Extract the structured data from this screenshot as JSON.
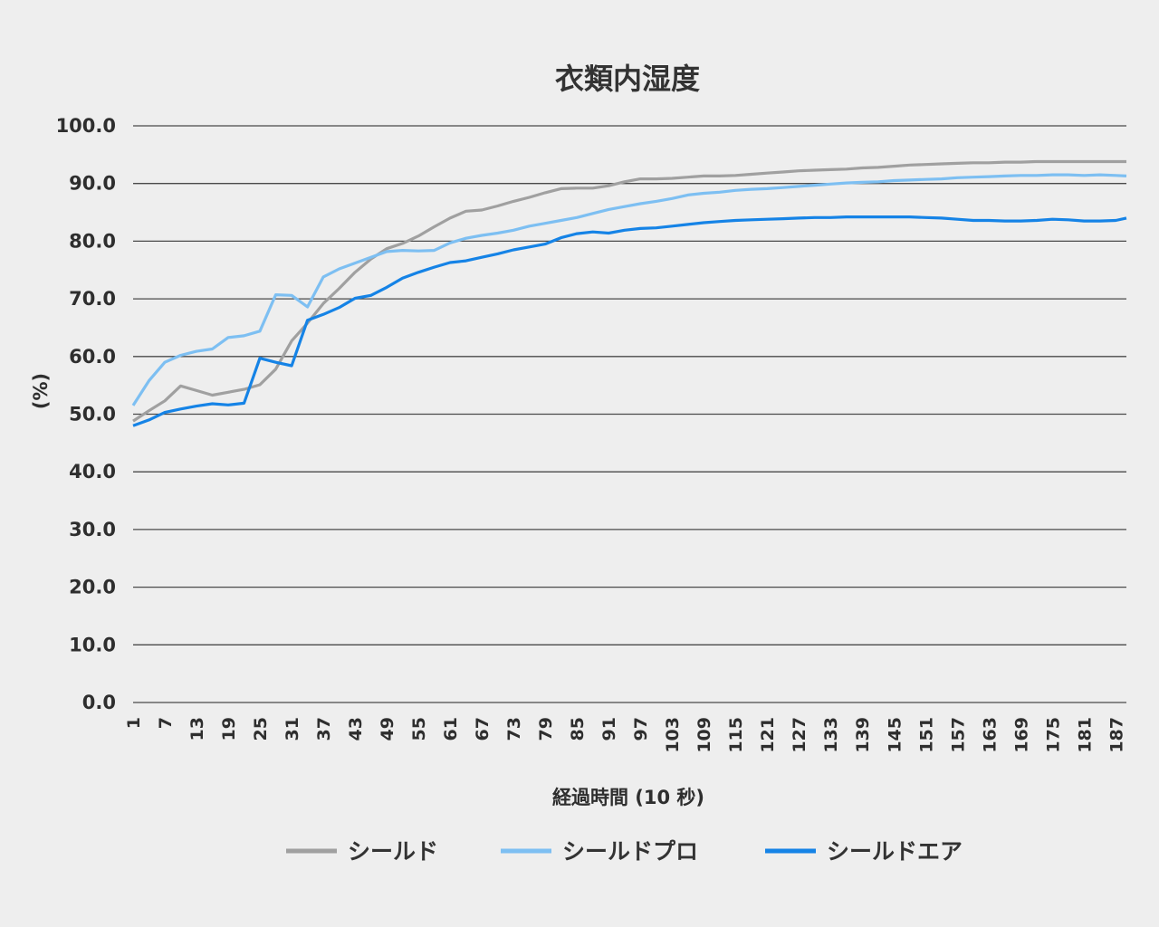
{
  "chart_data": {
    "type": "line",
    "title": "衣類内湿度",
    "xlabel": "経過時間 (10 秒)",
    "ylabel": "(%)",
    "ylim": [
      0,
      100
    ],
    "yticks": [
      "0.0",
      "10.0",
      "20.0",
      "30.0",
      "40.0",
      "50.0",
      "60.0",
      "70.0",
      "80.0",
      "90.0",
      "100.0"
    ],
    "x": [
      1,
      4,
      7,
      10,
      13,
      16,
      19,
      22,
      25,
      28,
      31,
      34,
      37,
      40,
      43,
      46,
      49,
      52,
      55,
      58,
      61,
      64,
      67,
      70,
      73,
      76,
      79,
      82,
      85,
      88,
      91,
      94,
      97,
      100,
      103,
      106,
      109,
      112,
      115,
      118,
      121,
      124,
      127,
      130,
      133,
      136,
      139,
      142,
      145,
      148,
      151,
      154,
      157,
      160,
      163,
      166,
      169,
      172,
      175,
      178,
      181,
      184,
      187,
      189
    ],
    "xticks": [
      1,
      7,
      13,
      19,
      25,
      31,
      37,
      43,
      49,
      55,
      61,
      67,
      73,
      79,
      85,
      91,
      97,
      103,
      109,
      115,
      121,
      127,
      133,
      139,
      145,
      151,
      157,
      163,
      169,
      175,
      181,
      187
    ],
    "grid": true,
    "legend_position": "bottom",
    "series": [
      {
        "name": "シールド",
        "color": "#a0a0a0",
        "values": [
          48.8,
          50.6,
          52.3,
          54.9,
          54.1,
          53.3,
          53.8,
          54.3,
          55.1,
          57.8,
          62.7,
          65.8,
          69.2,
          71.8,
          74.6,
          76.9,
          78.7,
          79.6,
          80.9,
          82.5,
          84,
          85.2,
          85.4,
          86.1,
          86.9,
          87.6,
          88.4,
          89.1,
          89.2,
          89.2,
          89.6,
          90.3,
          90.8,
          90.8,
          90.9,
          91.1,
          91.3,
          91.3,
          91.4,
          91.6,
          91.8,
          92,
          92.2,
          92.3,
          92.4,
          92.5,
          92.7,
          92.8,
          93,
          93.2,
          93.3,
          93.4,
          93.5,
          93.6,
          93.6,
          93.7,
          93.7,
          93.8,
          93.8,
          93.8,
          93.8,
          93.8,
          93.8,
          93.8
        ]
      },
      {
        "name": "シールドプロ",
        "color": "#7dbff2",
        "values": [
          51.5,
          55.8,
          59,
          60.2,
          60.9,
          61.3,
          63.3,
          63.6,
          64.4,
          70.7,
          70.6,
          68.6,
          73.8,
          75.2,
          76.2,
          77.2,
          78.2,
          78.4,
          78.3,
          78.4,
          79.7,
          80.5,
          81,
          81.4,
          81.9,
          82.6,
          83.1,
          83.6,
          84.1,
          84.8,
          85.5,
          86,
          86.5,
          86.9,
          87.4,
          88,
          88.3,
          88.5,
          88.8,
          89,
          89.1,
          89.3,
          89.5,
          89.7,
          89.9,
          90.1,
          90.2,
          90.3,
          90.5,
          90.6,
          90.7,
          90.8,
          91,
          91.1,
          91.2,
          91.3,
          91.4,
          91.4,
          91.5,
          91.5,
          91.4,
          91.5,
          91.4,
          91.3
        ]
      },
      {
        "name": "シールドエア",
        "color": "#1583e6",
        "values": [
          48,
          49,
          50.3,
          50.9,
          51.4,
          51.8,
          51.6,
          51.9,
          59.7,
          59,
          58.4,
          66.3,
          67.3,
          68.5,
          70.1,
          70.6,
          72,
          73.6,
          74.6,
          75.5,
          76.3,
          76.6,
          77.2,
          77.8,
          78.5,
          79,
          79.5,
          80.6,
          81.3,
          81.6,
          81.4,
          81.9,
          82.2,
          82.3,
          82.6,
          82.9,
          83.2,
          83.4,
          83.6,
          83.7,
          83.8,
          83.9,
          84,
          84.1,
          84.1,
          84.2,
          84.2,
          84.2,
          84.2,
          84.2,
          84.1,
          84,
          83.8,
          83.6,
          83.6,
          83.5,
          83.5,
          83.6,
          83.8,
          83.7,
          83.5,
          83.5,
          83.6,
          84
        ]
      }
    ]
  }
}
